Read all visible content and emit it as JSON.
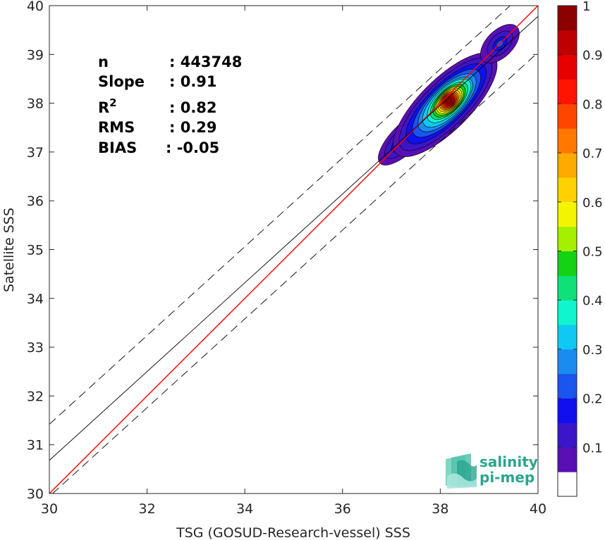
{
  "chart_data": {
    "type": "heatmap",
    "xlabel": "TSG (GOSUD-Research-vessel) SSS",
    "ylabel": "Satellite SSS",
    "xlim": [
      30,
      40
    ],
    "ylim": [
      30,
      40
    ],
    "x_ticks": [
      "30",
      "32",
      "34",
      "36",
      "38",
      "40"
    ],
    "y_ticks": [
      "30",
      "31",
      "32",
      "33",
      "34",
      "35",
      "36",
      "37",
      "38",
      "39",
      "40"
    ],
    "stats": [
      {
        "key": "n",
        "value": ": 443748"
      },
      {
        "key": "Slope",
        "value": ": 0.91"
      },
      {
        "key": "R",
        "sup": "2",
        "value": ": 0.82"
      },
      {
        "key": "RMS",
        "value": ": 0.29"
      },
      {
        "key": "BIAS",
        "value": ": -0.05"
      }
    ],
    "lines": [
      {
        "kind": "identity",
        "color": "#ff0000",
        "points": [
          [
            30,
            30
          ],
          [
            40,
            40
          ]
        ]
      },
      {
        "kind": "regression",
        "color": "#000000",
        "points": [
          [
            30,
            30.68
          ],
          [
            40,
            39.78
          ]
        ]
      },
      {
        "kind": "upper-bound",
        "color": "#000000",
        "dashed": true,
        "points": [
          [
            30,
            31.42
          ],
          [
            40,
            40.52
          ]
        ]
      },
      {
        "kind": "lower-bound",
        "color": "#000000",
        "dashed": true,
        "points": [
          [
            30,
            29.94
          ],
          [
            40,
            39.04
          ]
        ]
      }
    ],
    "density_clusters": [
      {
        "cx": 38.18,
        "cy": 38.05,
        "peak": 1.0
      },
      {
        "cx": 39.22,
        "cy": 39.22,
        "peak": 0.22
      },
      {
        "cx": 37.3,
        "cy": 37.3,
        "peak": 0.12
      }
    ],
    "colorbar": {
      "min": 0,
      "max": 1,
      "tick_labels": [
        "0.1",
        "0.2",
        "0.3",
        "0.4",
        "0.5",
        "0.6",
        "0.7",
        "0.8",
        "0.9",
        "1"
      ],
      "levels": [
        "#ffffff",
        "#5a0fb4",
        "#3a16c8",
        "#1010ee",
        "#1a55ee",
        "#1a8cf0",
        "#10c8f4",
        "#10f4d0",
        "#10e078",
        "#14d214",
        "#a4f000",
        "#f4f400",
        "#ffd200",
        "#ffaa00",
        "#ff7800",
        "#ff4600",
        "#ff1400",
        "#e60000",
        "#be0000",
        "#8c0000"
      ]
    }
  },
  "logo": {
    "line1": "salinity",
    "line2": "pi-mep",
    "color": "#2aa58e"
  }
}
